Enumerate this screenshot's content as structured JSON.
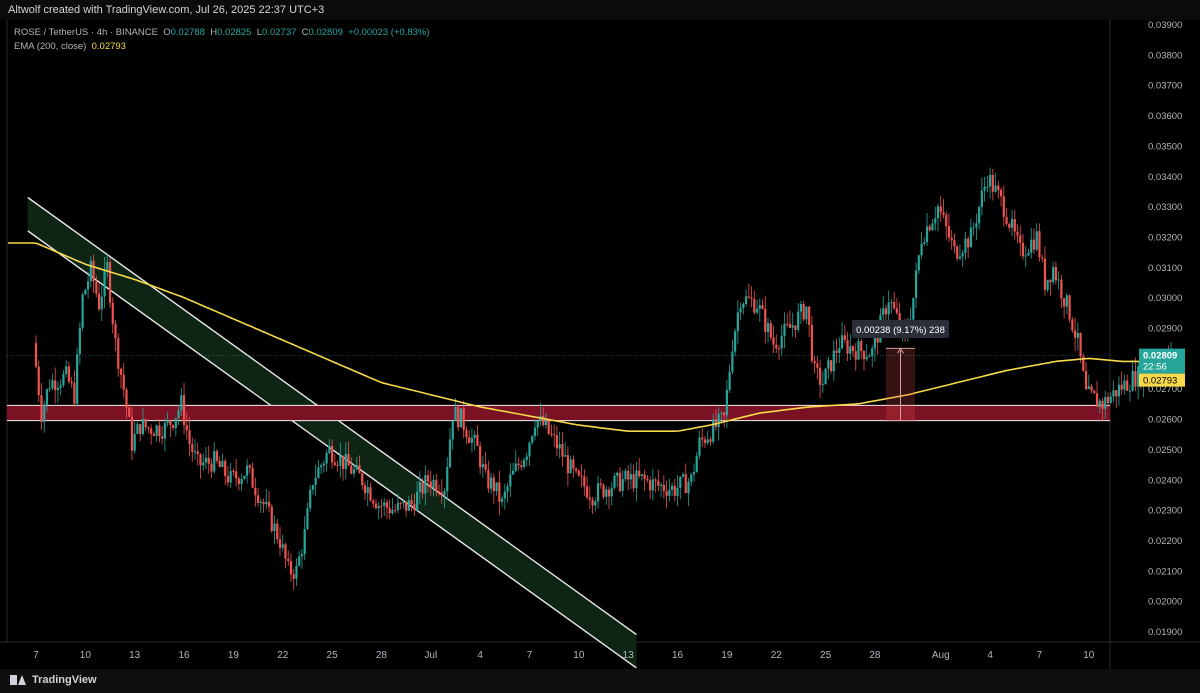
{
  "credit": "Altwolf created with TradingView.com, Jul 26, 2025 22:37 UTC+3",
  "legend": {
    "symbol": "ROSE / TetherUS · 4h · BINANCE",
    "o_label": "O",
    "o": "0.02788",
    "h_label": "H",
    "h": "0.02825",
    "l_label": "L",
    "l": "0.02737",
    "c_label": "C",
    "c": "0.02809",
    "change": "+0.00023 (+0.83%)",
    "ema_label": "EMA (200, close)",
    "ema_value": "0.02793"
  },
  "price_tags": {
    "last_price": "0.02809",
    "countdown": "22:56",
    "ema_price": "0.02793"
  },
  "measure_label": "0.00238 (9.17%) 238",
  "footer": {
    "brand": "TradingView"
  },
  "colors": {
    "up": "#26a69a",
    "down": "#ef5350",
    "ema": "#f7d94a",
    "zone": "#7b1224",
    "channel": "#0e2415",
    "background": "#000000"
  },
  "icons": [
    "tradingview-logo-icon"
  ],
  "chart_data": {
    "type": "candlestick",
    "title": "ROSE / TetherUS · 4h · BINANCE",
    "y_axis_ticks": [
      "0.03900",
      "0.03800",
      "0.03700",
      "0.03600",
      "0.03500",
      "0.03400",
      "0.03300",
      "0.03200",
      "0.03100",
      "0.03000",
      "0.02900",
      "0.02800",
      "0.02700",
      "0.02600",
      "0.02500",
      "0.02400",
      "0.02300",
      "0.02200",
      "0.02100",
      "0.02000",
      "0.01900"
    ],
    "ylim": [
      0.0187,
      0.0393
    ],
    "x_axis_ticks": [
      "7",
      "10",
      "13",
      "16",
      "19",
      "22",
      "25",
      "28",
      "Jul",
      "4",
      "7",
      "10",
      "13",
      "16",
      "19",
      "22",
      "25",
      "28",
      "Aug",
      "4",
      "7",
      "10"
    ],
    "x_ticks_day_index": [
      0,
      3,
      6,
      9,
      12,
      15,
      18,
      21,
      24,
      27,
      30,
      33,
      36,
      39,
      42,
      45,
      48,
      51,
      55,
      58,
      61,
      64
    ],
    "price_path": [
      [
        0,
        0.0285
      ],
      [
        0.5,
        0.0262
      ],
      [
        1,
        0.0272
      ],
      [
        2,
        0.0274
      ],
      [
        2.5,
        0.0268
      ],
      [
        3,
        0.03
      ],
      [
        3.5,
        0.0309
      ],
      [
        4,
        0.0298
      ],
      [
        4.5,
        0.031
      ],
      [
        5,
        0.0285
      ],
      [
        5.5,
        0.027
      ],
      [
        6,
        0.0252
      ],
      [
        6.5,
        0.0258
      ],
      [
        7,
        0.0257
      ],
      [
        8,
        0.0257
      ],
      [
        8.5,
        0.026
      ],
      [
        9,
        0.0265
      ],
      [
        9.5,
        0.0252
      ],
      [
        10,
        0.0245
      ],
      [
        11,
        0.0246
      ],
      [
        12,
        0.024
      ],
      [
        13,
        0.0243
      ],
      [
        14,
        0.0232
      ],
      [
        15,
        0.022
      ],
      [
        15.5,
        0.021
      ],
      [
        16,
        0.021
      ],
      [
        16.5,
        0.0222
      ],
      [
        17,
        0.024
      ],
      [
        18,
        0.025
      ],
      [
        19,
        0.0245
      ],
      [
        20,
        0.024
      ],
      [
        21,
        0.0232
      ],
      [
        22,
        0.023
      ],
      [
        23,
        0.0232
      ],
      [
        24,
        0.024
      ],
      [
        25,
        0.0238
      ],
      [
        25.5,
        0.0262
      ],
      [
        26,
        0.026
      ],
      [
        27,
        0.025
      ],
      [
        27.5,
        0.024
      ],
      [
        28,
        0.0238
      ],
      [
        28.5,
        0.0232
      ],
      [
        29,
        0.024
      ],
      [
        30,
        0.025
      ],
      [
        30.5,
        0.026
      ],
      [
        31,
        0.0258
      ],
      [
        32,
        0.025
      ],
      [
        32.5,
        0.0245
      ],
      [
        33,
        0.024
      ],
      [
        33.5,
        0.0238
      ],
      [
        34,
        0.0235
      ],
      [
        35,
        0.0238
      ],
      [
        36,
        0.024
      ],
      [
        37,
        0.024
      ],
      [
        38,
        0.0238
      ],
      [
        39,
        0.0237
      ],
      [
        40,
        0.024
      ],
      [
        40.5,
        0.0252
      ],
      [
        41,
        0.0255
      ],
      [
        42,
        0.026
      ],
      [
        42.5,
        0.0285
      ],
      [
        43,
        0.03
      ],
      [
        44,
        0.0298
      ],
      [
        45,
        0.0285
      ],
      [
        46,
        0.029
      ],
      [
        47,
        0.0297
      ],
      [
        47.5,
        0.0275
      ],
      [
        48,
        0.0272
      ],
      [
        49,
        0.0285
      ],
      [
        50,
        0.0283
      ],
      [
        51,
        0.0282
      ],
      [
        52,
        0.03
      ],
      [
        53,
        0.0286
      ],
      [
        53.5,
        0.03
      ],
      [
        54,
        0.032
      ],
      [
        55,
        0.033
      ],
      [
        56,
        0.0315
      ],
      [
        57,
        0.032
      ],
      [
        58,
        0.034
      ],
      [
        59,
        0.033
      ],
      [
        60,
        0.0315
      ],
      [
        61,
        0.032
      ],
      [
        61.5,
        0.0305
      ],
      [
        62,
        0.031
      ],
      [
        63,
        0.0295
      ],
      [
        63.5,
        0.0285
      ],
      [
        64,
        0.0268
      ],
      [
        65,
        0.0265
      ],
      [
        66,
        0.027
      ],
      [
        67,
        0.0274
      ],
      [
        68,
        0.0276
      ],
      [
        69,
        0.0281
      ]
    ],
    "price_path_x_units": "days since Jun 7 (first date label)",
    "ema_path": [
      [
        0,
        0.0318
      ],
      [
        3,
        0.0311
      ],
      [
        6,
        0.0306
      ],
      [
        9,
        0.03
      ],
      [
        12,
        0.0293
      ],
      [
        15,
        0.0286
      ],
      [
        18,
        0.0279
      ],
      [
        21,
        0.0272
      ],
      [
        24,
        0.0268
      ],
      [
        27,
        0.0264
      ],
      [
        30,
        0.0261
      ],
      [
        33,
        0.0258
      ],
      [
        36,
        0.0256
      ],
      [
        39,
        0.0256
      ],
      [
        41,
        0.0258
      ],
      [
        44,
        0.0262
      ],
      [
        47,
        0.0264
      ],
      [
        50,
        0.0265
      ],
      [
        53,
        0.0268
      ],
      [
        56,
        0.0272
      ],
      [
        59,
        0.0276
      ],
      [
        62,
        0.0279
      ],
      [
        64,
        0.028
      ],
      [
        66,
        0.0279
      ],
      [
        69,
        0.0279
      ]
    ],
    "ema_label": "EMA (200, close)",
    "resistance_zone": [
      0.02595,
      0.02645
    ],
    "channel": {
      "upper_start": [
        -0.5,
        0.0333
      ],
      "upper_end": [
        36.5,
        0.0189
      ],
      "width": 0.0011
    },
    "last_price": 0.02809,
    "ema_value": 0.02793,
    "measure": {
      "from": 0.02595,
      "to": 0.02833,
      "label": "0.00238 (9.17%) 238"
    }
  }
}
